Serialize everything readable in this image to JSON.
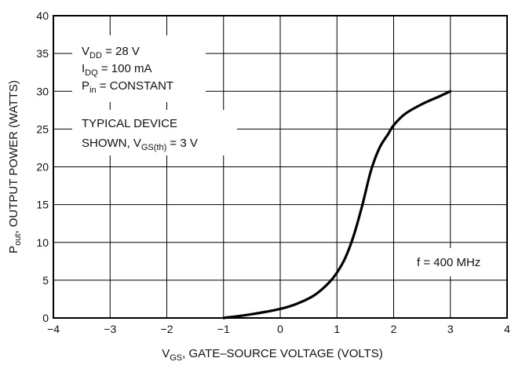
{
  "chart_data": {
    "type": "line",
    "xlabel": {
      "main": "V",
      "sub": "GS",
      "rest": ", GATE–SOURCE VOLTAGE (VOLTS)"
    },
    "ylabel": {
      "main": "P",
      "sub": "out",
      "rest": ", OUTPUT POWER (WATTS)"
    },
    "xlim": [
      -4,
      4
    ],
    "ylim": [
      0,
      40
    ],
    "x_ticks": [
      -4,
      -3,
      -2,
      -1,
      0,
      1,
      2,
      3,
      4
    ],
    "y_ticks": [
      0,
      5,
      10,
      15,
      20,
      25,
      30,
      35,
      40
    ],
    "x_tick_labels": [
      "−4",
      "−3",
      "−2",
      "−1",
      "0",
      "1",
      "2",
      "3",
      "4"
    ],
    "y_tick_labels": [
      "0",
      "5",
      "10",
      "15",
      "20",
      "25",
      "30",
      "35",
      "40"
    ],
    "grid": true,
    "series": [
      {
        "x": [
          -1.0,
          -0.5,
          0.0,
          0.3,
          0.6,
          0.85,
          1.0,
          1.15,
          1.3,
          1.45,
          1.6,
          1.75,
          1.9,
          2.0,
          2.2,
          2.5,
          2.8,
          3.0
        ],
        "y": [
          0,
          0.5,
          1.2,
          1.9,
          3.0,
          4.6,
          6.0,
          8.0,
          11.0,
          15.0,
          19.5,
          22.5,
          24.3,
          25.5,
          27.0,
          28.3,
          29.3,
          30.0
        ]
      }
    ],
    "annotations": {
      "conditions": [
        {
          "main": "V",
          "sub": "DD",
          "rest": " = 28 V"
        },
        {
          "main": "I",
          "sub": "DQ",
          "rest": " = 100 mA"
        },
        {
          "main": "P",
          "sub": "in",
          "rest": " = CONSTANT"
        }
      ],
      "device_line1": "TYPICAL DEVICE",
      "device_line2": {
        "main": "SHOWN, V",
        "sub": "GS(th)",
        "rest": " = 3 V"
      },
      "frequency": "f = 400 MHz"
    }
  }
}
